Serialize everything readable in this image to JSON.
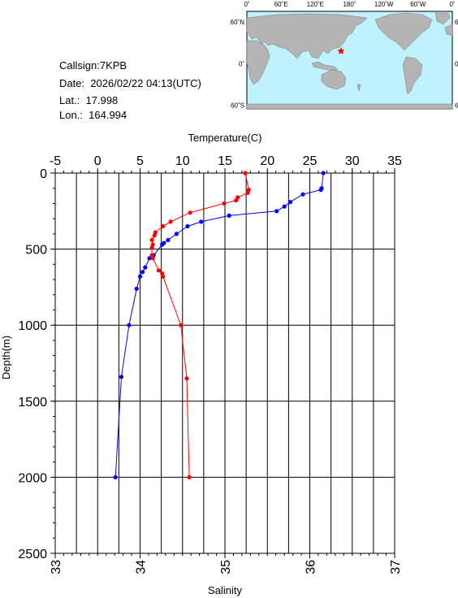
{
  "header": {
    "callsign": "Callsign:7KPB",
    "date": "Date:  2026/02/22 04:13(UTC)",
    "lat": "Lat.:  17.998",
    "lon": "Lon.:  164.994"
  },
  "map": {
    "lon_labels": [
      "0˚",
      "60˚E",
      "120˚E",
      "180˚",
      "120˚W",
      "60˚W",
      "0˚"
    ],
    "lat_labels": [
      "60˚N",
      "0˚",
      "60˚S"
    ],
    "ocean_color": "#bff2ff",
    "land_color": "#b4b4b4",
    "marker_color": "#ff0000",
    "marker": {
      "lon": 165.0,
      "lat": 18.0
    }
  },
  "chart_data": {
    "type": "line",
    "xlabel_top": "Temperature(C)",
    "xlabel_bottom": "Salinity",
    "ylabel": "Depth(m)",
    "temperature_lim": [
      -5,
      35
    ],
    "salinity_lim": [
      33,
      37
    ],
    "depth_lim": [
      0,
      2500
    ],
    "temperature_ticks": [
      "-5",
      "0",
      "5",
      "10",
      "15",
      "20",
      "25",
      "30",
      "35"
    ],
    "salinity_ticks": [
      "33",
      "34",
      "35",
      "36",
      "37"
    ],
    "depth_ticks": [
      "0",
      "500",
      "1000",
      "1500",
      "2000",
      "2500"
    ],
    "grid": true,
    "series": [
      {
        "color": "#0000ff",
        "axis": "temperature",
        "points": [
          [
            26.6,
            0
          ],
          [
            26.4,
            100
          ],
          [
            26.3,
            110
          ],
          [
            24.2,
            140
          ],
          [
            22.7,
            190
          ],
          [
            22.0,
            220
          ],
          [
            21.1,
            250
          ],
          [
            15.5,
            280
          ],
          [
            12.2,
            320
          ],
          [
            10.6,
            350
          ],
          [
            9.3,
            400
          ],
          [
            8.3,
            440
          ],
          [
            7.8,
            460
          ],
          [
            7.6,
            470
          ],
          [
            6.6,
            540
          ],
          [
            6.1,
            560
          ],
          [
            5.6,
            620
          ],
          [
            5.3,
            650
          ],
          [
            5.0,
            680
          ],
          [
            4.6,
            760
          ],
          [
            3.7,
            1000
          ],
          [
            2.8,
            1340
          ],
          [
            2.1,
            2000
          ]
        ]
      },
      {
        "color": "#ff0000",
        "axis": "salinity",
        "points": [
          [
            35.24,
            0
          ],
          [
            35.28,
            110
          ],
          [
            35.27,
            130
          ],
          [
            35.15,
            160
          ],
          [
            35.13,
            180
          ],
          [
            34.99,
            200
          ],
          [
            34.59,
            260
          ],
          [
            34.36,
            320
          ],
          [
            34.27,
            350
          ],
          [
            34.18,
            390
          ],
          [
            34.17,
            410
          ],
          [
            34.14,
            440
          ],
          [
            34.15,
            470
          ],
          [
            34.14,
            490
          ],
          [
            34.14,
            540
          ],
          [
            34.15,
            560
          ],
          [
            34.22,
            640
          ],
          [
            34.26,
            660
          ],
          [
            34.27,
            680
          ],
          [
            34.48,
            1000
          ],
          [
            34.55,
            1350
          ],
          [
            34.58,
            2000
          ]
        ]
      }
    ]
  }
}
